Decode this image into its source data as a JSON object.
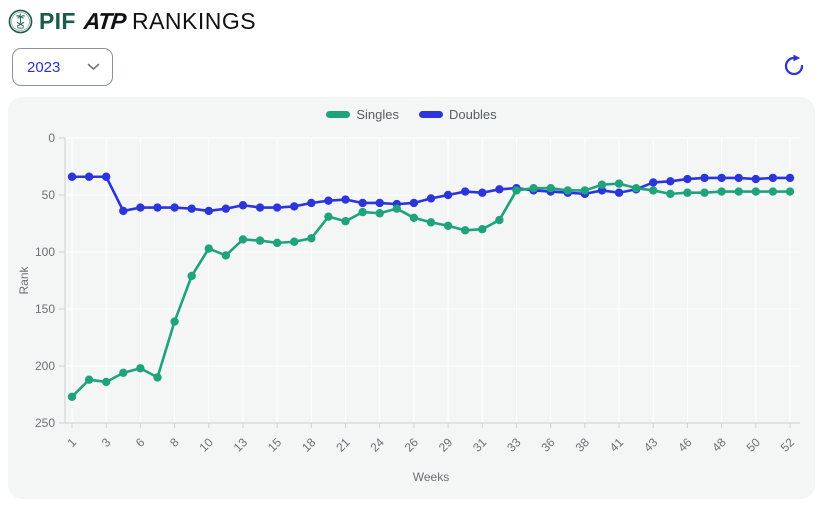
{
  "header": {
    "pif": "PIF",
    "atp": "ATP",
    "rankings": "RANKINGS"
  },
  "controls": {
    "year": "2023"
  },
  "colors": {
    "singles": "#1FA37C",
    "doubles": "#2B35DB",
    "grid": "#FFFFFF",
    "axis": "#CFCFCF",
    "tick_label": "#6C7074",
    "legend_label": "#5A5E63",
    "card_bg": "#F3F6F5",
    "brand_green": "#1A5B4B",
    "brand_black": "#101113",
    "year_text": "#2633D0",
    "border": "#8D9399"
  },
  "chart_data": {
    "type": "line",
    "title": "",
    "xlabel": "Weeks",
    "ylabel": "Rank",
    "ylim": [
      0,
      250
    ],
    "y_inverted": true,
    "y_ticks": [
      0,
      50,
      100,
      150,
      200,
      250
    ],
    "grid": true,
    "legend_position": "top",
    "x_tick_labels_shown": [
      1,
      3,
      6,
      8,
      10,
      13,
      15,
      18,
      21,
      24,
      26,
      29,
      31,
      33,
      36,
      38,
      41,
      43,
      46,
      48,
      50,
      52
    ],
    "categories": [
      1,
      2,
      3,
      5,
      6,
      7,
      8,
      9,
      10,
      12,
      13,
      14,
      15,
      17,
      18,
      20,
      21,
      23,
      24,
      25,
      26,
      28,
      29,
      30,
      31,
      32,
      33,
      35,
      36,
      37,
      38,
      40,
      41,
      42,
      43,
      45,
      46,
      47,
      48,
      49,
      50,
      51,
      52
    ],
    "series": [
      {
        "name": "Singles",
        "color": "#1FA37C",
        "values": [
          227,
          212,
          214,
          206,
          202,
          210,
          161,
          121,
          97,
          103,
          89,
          90,
          92,
          91,
          88,
          69,
          73,
          65,
          66,
          62,
          70,
          74,
          77,
          81,
          80,
          72,
          46,
          44,
          44,
          46,
          46,
          41,
          40,
          44,
          46,
          49,
          48,
          48,
          47,
          47,
          47,
          47,
          47
        ]
      },
      {
        "name": "Doubles",
        "color": "#2B35DB",
        "values": [
          34,
          34,
          34,
          64,
          61,
          61,
          61,
          62,
          64,
          62,
          59,
          61,
          61,
          60,
          57,
          55,
          54,
          57,
          57,
          58,
          57,
          53,
          50,
          47,
          48,
          45,
          44,
          46,
          47,
          48,
          49,
          46,
          48,
          45,
          39,
          38,
          36,
          35,
          35,
          35,
          36,
          35,
          35
        ]
      }
    ]
  }
}
